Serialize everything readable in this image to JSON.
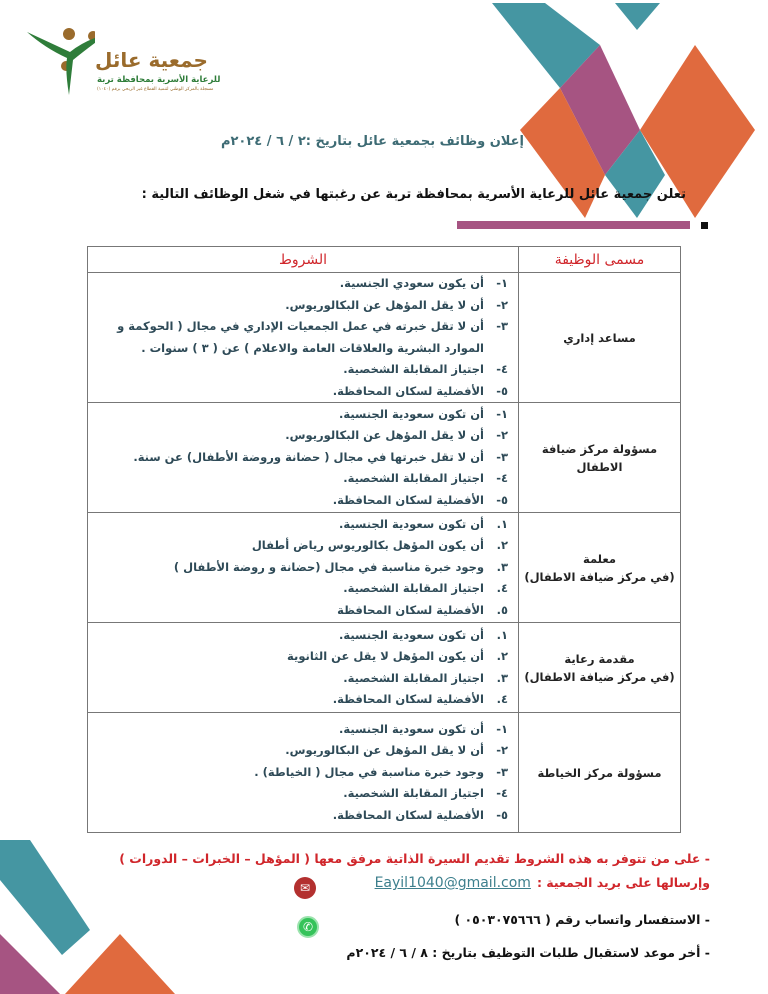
{
  "colors": {
    "teal": "#4596a2",
    "orange": "#e06a3e",
    "purple": "#a65482",
    "red": "#d0262b",
    "logo_brown": "#9a6b2c",
    "logo_green": "#2f7d3a"
  },
  "logo": {
    "title": "جمعية عائل",
    "subtitle": "للرعاية الأسرية بمحافظة تربة",
    "small": "مسجلة بالمركز الوطني لتنمية القطاع غير الربحي برقم (١٠٤٠)"
  },
  "heading": "إعلان وظائف بجمعية عائل بتاريخ :٢ / ٦ / ٢٠٢٤م",
  "intro": "تعلن جمعية عائل للرعاية الأسرية بمحافظة تربة عن رغبتها في شغل الوظائف التالية :",
  "table": {
    "headers": {
      "job": "مسمى الوظيفة",
      "conditions": "الشروط"
    },
    "rows": [
      {
        "job": "مساعد إداري",
        "conditions": [
          {
            "n": "١-",
            "t": "أن يكون سعودي الجنسية."
          },
          {
            "n": "٢-",
            "t": "أن لا يقل المؤهل عن البكالوريوس."
          },
          {
            "n": "٣-",
            "t": "أن لا تقل خبرته في عمل الجمعيات الإداري في مجال ( الحوكمة و الموارد البشرية والعلاقات العامة والاعلام ) عن ( ٣ ) سنوات ."
          },
          {
            "n": "٤-",
            "t": "اجتياز المقابلة الشخصية."
          },
          {
            "n": "٥-",
            "t": "الأفضلية لسكان المحافظة."
          }
        ]
      },
      {
        "job": "مسؤولة مركز ضيافة الاطفال",
        "conditions": [
          {
            "n": "١-",
            "t": "أن تكون سعودية الجنسية."
          },
          {
            "n": "٢-",
            "t": "أن لا يقل المؤهل عن البكالوريوس."
          },
          {
            "n": "٣-",
            "t": "أن لا تقل خبرتها في مجال ( حضانة وروضة الأطفال) عن سنة."
          },
          {
            "n": "٤-",
            "t": "اجتياز المقابلة الشخصية."
          },
          {
            "n": "٥-",
            "t": "الأفضلية لسكان المحافظة."
          }
        ]
      },
      {
        "job": "معلمة",
        "job_sub": "(في مركز ضيافة الاطفال)",
        "conditions": [
          {
            "n": "١.",
            "t": "أن تكون سعودية الجنسية."
          },
          {
            "n": "٢.",
            "t": "أن يكون المؤهل بكالوريوس رياض أطفال"
          },
          {
            "n": "٣.",
            "t": "وجود خبرة مناسبة في مجال (حضانة و روضة الأطفال )"
          },
          {
            "n": "٤.",
            "t": "اجتياز المقابلة الشخصية."
          },
          {
            "n": "٥.",
            "t": "الأفضلية لسكان المحافظة"
          }
        ]
      },
      {
        "job": "مقدمة رعاية",
        "job_sub": "(في مركز ضيافة الاطفال)",
        "conditions": [
          {
            "n": "١.",
            "t": "أن تكون سعودية الجنسية."
          },
          {
            "n": "٢.",
            "t": "أن يكون المؤهل لا يقل عن الثانوية"
          },
          {
            "n": "٣.",
            "t": "اجتياز المقابلة الشخصية."
          },
          {
            "n": "٤.",
            "t": "الأفضلية لسكان المحافظة."
          }
        ]
      },
      {
        "job": "مسؤولة مركز الخياطة",
        "conditions": [
          {
            "n": "١-",
            "t": "أن تكون سعودية الجنسية."
          },
          {
            "n": "٢-",
            "t": "أن لا يقل المؤهل عن البكالوريوس."
          },
          {
            "n": "٣-",
            "t": "وجود خبرة مناسبة في مجال ( الخياطة) ."
          },
          {
            "n": "٤-",
            "t": "اجتياز المقابلة الشخصية."
          },
          {
            "n": "٥-",
            "t": "الأفضلية لسكان المحافظة."
          }
        ]
      }
    ]
  },
  "footer": {
    "apply": "- على من تتوفر به هذه الشروط تقديم السيرة الذاتية مرفق معها ( المؤهل – الخبرات – الدورات )",
    "send": "وإرسالها على بريد الجمعية :",
    "email": "Eayil1040@gmail.com",
    "whatsapp": "-  الاستفسار واتساب رقم ( ٠٥٠٣٠٧٥٦٦٦ )",
    "deadline": "-  أخر موعد لاستقبال طلبات التوظيف بتاريخ : ٨ / ٦ / ٢٠٢٤م",
    "icons": {
      "email": "mail-icon",
      "whatsapp": "whatsapp-icon"
    }
  }
}
